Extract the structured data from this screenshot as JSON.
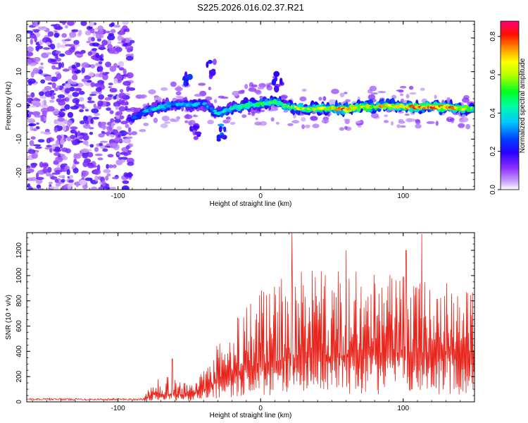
{
  "title": "S225.2026.016.02.37.R21",
  "chart_data": [
    {
      "type": "heatmap",
      "name": "spectrogram",
      "xlabel": "Height of straight line (km)",
      "ylabel": "Frequency (Hz)",
      "xlim": [
        -164,
        150
      ],
      "ylim": [
        -25,
        25
      ],
      "xticks": [
        -100,
        0,
        100
      ],
      "yticks": [
        -20,
        -10,
        0,
        10,
        20
      ],
      "colorbar": {
        "label": "Normalized spectral amplitude",
        "range": [
          0,
          0.88
        ],
        "ticks": [
          0.0,
          0.2,
          0.4,
          0.6,
          0.8
        ],
        "colors": [
          "#ffffff",
          "#b040f0",
          "#5000ff",
          "#0000ff",
          "#00c0ff",
          "#00ffa0",
          "#00ff00",
          "#c0ff00",
          "#ffff00",
          "#ff8000",
          "#ff0000",
          "#ff0080"
        ]
      },
      "noise_region": {
        "x_from": -164,
        "x_to": -90,
        "level": 0.12
      },
      "ridge": [
        {
          "x": -90,
          "f": -4.0,
          "amp": 0.25
        },
        {
          "x": -80,
          "f": -1.5,
          "amp": 0.35
        },
        {
          "x": -70,
          "f": -0.5,
          "amp": 0.4
        },
        {
          "x": -60,
          "f": 0.5,
          "amp": 0.35
        },
        {
          "x": -50,
          "f": 0.0,
          "amp": 0.38
        },
        {
          "x": -40,
          "f": 0.5,
          "amp": 0.3
        },
        {
          "x": -30,
          "f": -2.5,
          "amp": 0.4
        },
        {
          "x": -20,
          "f": -1.0,
          "amp": 0.42
        },
        {
          "x": -10,
          "f": 0.0,
          "amp": 0.45
        },
        {
          "x": 0,
          "f": 0.5,
          "amp": 0.5
        },
        {
          "x": 10,
          "f": 1.0,
          "amp": 0.5
        },
        {
          "x": 20,
          "f": -0.5,
          "amp": 0.55
        },
        {
          "x": 30,
          "f": -1.0,
          "amp": 0.6
        },
        {
          "x": 40,
          "f": -1.0,
          "amp": 0.62
        },
        {
          "x": 50,
          "f": -1.0,
          "amp": 0.7
        },
        {
          "x": 60,
          "f": -1.0,
          "amp": 0.72
        },
        {
          "x": 70,
          "f": -0.5,
          "amp": 0.7
        },
        {
          "x": 80,
          "f": -0.5,
          "amp": 0.65
        },
        {
          "x": 90,
          "f": 0.0,
          "amp": 0.72
        },
        {
          "x": 100,
          "f": -0.5,
          "amp": 0.68
        },
        {
          "x": 110,
          "f": -0.5,
          "amp": 0.74
        },
        {
          "x": 120,
          "f": -0.5,
          "amp": 0.82
        },
        {
          "x": 130,
          "f": -0.5,
          "amp": 0.75
        },
        {
          "x": 140,
          "f": -1.0,
          "amp": 0.68
        },
        {
          "x": 150,
          "f": -1.0,
          "amp": 0.6
        }
      ],
      "side_features": [
        {
          "x": -52,
          "f": 7.0,
          "amp": 0.3
        },
        {
          "x": -35,
          "f": 11.0,
          "amp": 0.22
        },
        {
          "x": -46,
          "f": -8.0,
          "amp": 0.2
        },
        {
          "x": 12,
          "f": 7.0,
          "amp": 0.22
        },
        {
          "x": -28,
          "f": -8.0,
          "amp": 0.35
        }
      ]
    },
    {
      "type": "line",
      "name": "snr",
      "xlabel": "Height of straight line (km)",
      "ylabel": "SNR (10 * v/v)",
      "xlim": [
        -164,
        150
      ],
      "ylim": [
        0,
        1340
      ],
      "xticks": [
        -100,
        0,
        100
      ],
      "yticks": [
        0,
        200,
        400,
        600,
        800,
        1000,
        1200
      ],
      "color": "#e8251c",
      "envelope": [
        {
          "x": -164,
          "base": 20,
          "spread": 15
        },
        {
          "x": -82,
          "base": 20,
          "spread": 15
        },
        {
          "x": -75,
          "base": 60,
          "spread": 110
        },
        {
          "x": -65,
          "base": 60,
          "spread": 140
        },
        {
          "x": -50,
          "base": 55,
          "spread": 90
        },
        {
          "x": -40,
          "base": 90,
          "spread": 150
        },
        {
          "x": -30,
          "base": 160,
          "spread": 300
        },
        {
          "x": -20,
          "base": 220,
          "spread": 420
        },
        {
          "x": -10,
          "base": 260,
          "spread": 520
        },
        {
          "x": 0,
          "base": 300,
          "spread": 600
        },
        {
          "x": 20,
          "base": 340,
          "spread": 700
        },
        {
          "x": 50,
          "base": 360,
          "spread": 680
        },
        {
          "x": 80,
          "base": 380,
          "spread": 660
        },
        {
          "x": 110,
          "base": 380,
          "spread": 640
        },
        {
          "x": 150,
          "base": 400,
          "spread": 500
        }
      ],
      "peaks": [
        {
          "x": 22,
          "y": 1340
        },
        {
          "x": 113,
          "y": 1330
        },
        {
          "x": 60,
          "y": 1200
        },
        {
          "x": 102,
          "y": 1200
        },
        {
          "x": -62,
          "y": 340
        }
      ]
    }
  ]
}
